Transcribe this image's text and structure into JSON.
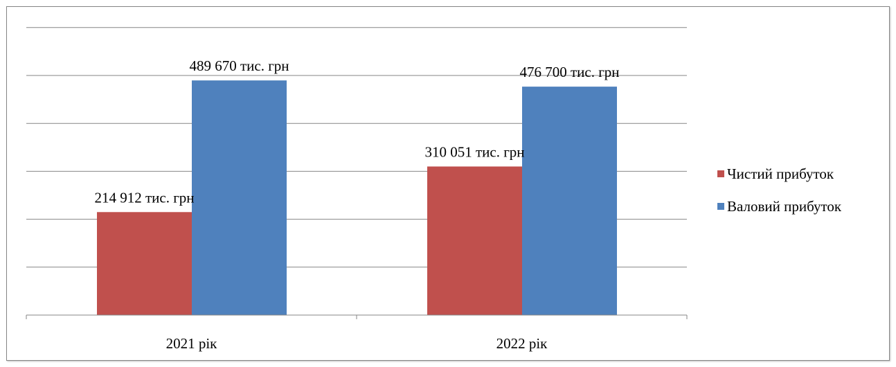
{
  "chart_data": {
    "type": "bar",
    "categories": [
      "2021 рік",
      "2022 рік"
    ],
    "series": [
      {
        "name": "Чистий прибуток",
        "color": "#C0504D",
        "values": [
          214912,
          310051
        ],
        "labels": [
          "214 912 тис. грн",
          "310 051 тис. грн"
        ]
      },
      {
        "name": "Валовий прибуток",
        "color": "#4F81BD",
        "values": [
          489670,
          476700
        ],
        "labels": [
          "489 670 тис. грн",
          "476 700 тис. грн"
        ]
      }
    ],
    "ylim": [
      0,
      600000
    ],
    "grid": true,
    "legend_position": "right",
    "title": "",
    "xlabel": "",
    "ylabel": ""
  }
}
